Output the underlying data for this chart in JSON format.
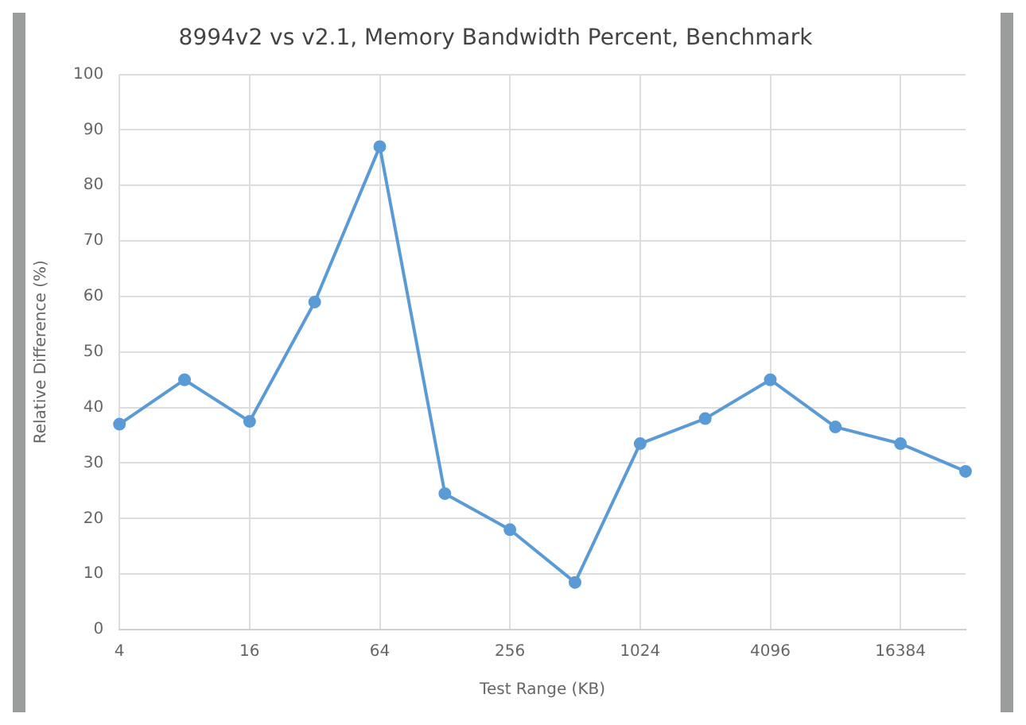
{
  "chart_data": {
    "type": "line",
    "title": "8994v2 vs v2.1, Memory Bandwidth Percent, Benchmark",
    "xlabel": "Test Range (KB)",
    "ylabel": "Relative Difference (%)",
    "categories": [
      "4",
      null,
      "16",
      null,
      "64",
      null,
      "256",
      null,
      "1024",
      null,
      "4096",
      null,
      "16384",
      null
    ],
    "series": [
      {
        "color": "#5b9bd5",
        "values": [
          37,
          45,
          37.5,
          59,
          87,
          24.5,
          18,
          8.5,
          33.5,
          38,
          45,
          36.5,
          33.5,
          28.5
        ]
      }
    ],
    "ylim": [
      0,
      100
    ],
    "yticks": [
      0,
      10,
      20,
      30,
      40,
      50,
      60,
      70,
      80,
      90,
      100
    ],
    "grid": true,
    "legend": false,
    "marker": "circle",
    "line_style": "solid"
  }
}
